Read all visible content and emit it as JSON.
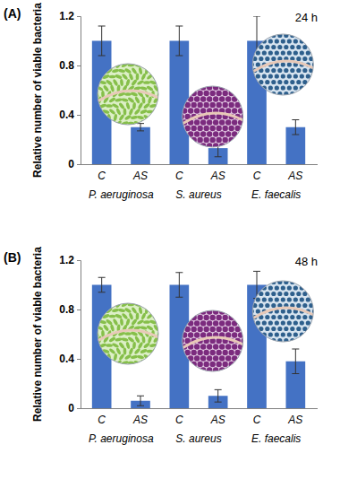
{
  "chart_data": [
    {
      "type": "bar",
      "title": "(A)",
      "annotations": [
        "24 h"
      ],
      "y_label": "Relative number of viable bacteria",
      "categories": [
        "C",
        "AS",
        "C",
        "AS",
        "C",
        "AS"
      ],
      "groups": [
        "P. aeruginosa",
        "S. aureus",
        "E. faecalis"
      ],
      "values": [
        1,
        0.3,
        1,
        0.13,
        1,
        0.3
      ],
      "errors": [
        0.12,
        0.03,
        0.12,
        0.07,
        0.2,
        0.06
      ],
      "color": "#4472c4",
      "ylim": [
        0,
        1.2
      ],
      "yticks": [
        0,
        0.4,
        0.8,
        1.2
      ]
    },
    {
      "type": "bar",
      "title": "(B)",
      "annotations": [
        "48 h"
      ],
      "y_label": "Relative number of viable bacteria",
      "categories": [
        "C",
        "AS",
        "C",
        "AS",
        "C",
        "AS"
      ],
      "groups": [
        "P. aeruginosa",
        "S. aureus",
        "E. faecalis"
      ],
      "values": [
        1,
        0.06,
        1,
        0.1,
        1,
        0.38
      ],
      "errors": [
        0.06,
        0.04,
        0.1,
        0.05,
        0.11,
        0.1
      ],
      "color": "#4472c4",
      "ylim": [
        0,
        1.2
      ],
      "yticks": [
        0,
        0.4,
        0.8,
        1.2
      ]
    }
  ]
}
